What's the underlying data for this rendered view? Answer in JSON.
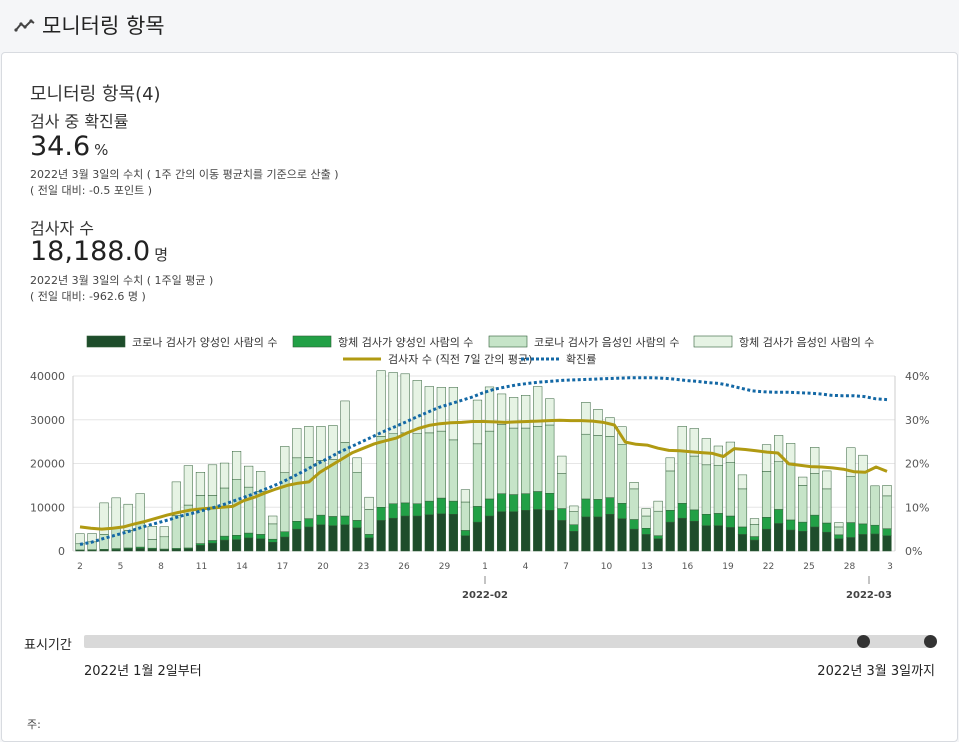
{
  "header": {
    "title": "모니터링 항목",
    "icon": "line-chart-icon"
  },
  "section": {
    "title": "모니터링 항목(4)"
  },
  "metric1": {
    "label": "검사 중 확진률",
    "value": "34.6",
    "unit": "%",
    "note1": "2022년 3월 3일의 수치 ( 1주 간의 이동 평균치를 기준으로 산출 )",
    "note2": "( 전일 대비: -0.5 포인트 )"
  },
  "metric2": {
    "label": "검사자 수",
    "value": "18,188.0",
    "unit": "명",
    "note1": "2022년 3월 3일의 수치 ( 1주일 평균 )",
    "note2": "( 전일 대비: -962.6 명 )"
  },
  "range": {
    "label": "표시기간",
    "start": "2022년 1월 2일부터",
    "end": "2022년 3월 3일까지"
  },
  "footer": {
    "note_label": "주:"
  },
  "colors": {
    "pcr_pos": "#1e4d2b",
    "ag_pos": "#22a046",
    "pcr_neg": "#c6e4c8",
    "ag_neg": "#e6f3e4",
    "avg_line": "#b09a12",
    "rate_line": "#1368a5"
  },
  "chart_data": {
    "type": "bar",
    "stacked": true,
    "x_tick_labels": [
      "2",
      "5",
      "8",
      "11",
      "14",
      "17",
      "20",
      "23",
      "26",
      "29",
      "1",
      "4",
      "7",
      "10",
      "13",
      "16",
      "19",
      "22",
      "25",
      "28",
      "3"
    ],
    "month_labels": [
      "2022-02",
      "2022-03"
    ],
    "ylim_left": [
      0,
      40000
    ],
    "yticks_left": [
      "0",
      "10000",
      "20000",
      "30000",
      "40000"
    ],
    "ylim_right": [
      0,
      40
    ],
    "yticks_right": [
      "0%",
      "10%",
      "20%",
      "30%",
      "40%"
    ],
    "grid": true,
    "legend_position": "top",
    "series": [
      {
        "name": "코로나 검사가 양성인 사람의 수",
        "kind": "bar",
        "values": [
          150,
          200,
          250,
          350,
          500,
          600,
          450,
          300,
          400,
          500,
          1300,
          1800,
          2500,
          2600,
          3000,
          2800,
          2000,
          3200,
          5000,
          5500,
          6000,
          5800,
          6000,
          5300,
          3000,
          7000,
          7500,
          8000,
          8000,
          8300,
          8500,
          8400,
          3500,
          6600,
          8000,
          9000,
          9000,
          9300,
          9500,
          9300,
          7000,
          4500,
          7800,
          7800,
          8400,
          7400,
          5000,
          3800,
          2800,
          6600,
          7500,
          6800,
          5800,
          5800,
          5400,
          3800,
          2500,
          5000,
          6300,
          4800,
          4500,
          5500,
          4300,
          2800,
          3100,
          3800,
          3900,
          3500
        ],
        "colors": "pcr_pos"
      },
      {
        "name": "항체 검사가 양성인 사람의 수",
        "kind": "bar",
        "values": [
          100,
          100,
          150,
          200,
          200,
          300,
          200,
          150,
          200,
          200,
          400,
          600,
          900,
          1000,
          1100,
          1000,
          700,
          1200,
          1800,
          1900,
          2200,
          2100,
          2000,
          1700,
          800,
          3000,
          3300,
          3000,
          2800,
          3100,
          3600,
          3000,
          1200,
          3600,
          3900,
          4100,
          3900,
          3800,
          4100,
          3900,
          2700,
          1500,
          4100,
          4000,
          3800,
          3500,
          2200,
          1400,
          700,
          2700,
          3400,
          2600,
          2600,
          2800,
          2600,
          1700,
          800,
          2700,
          3200,
          2300,
          2100,
          2700,
          2100,
          900,
          3400,
          2400,
          2000,
          1600
        ],
        "colors": "ag_pos"
      },
      {
        "name": "코로나 검사가 음성인 사람의 수",
        "kind": "bar",
        "values": [
          1400,
          1800,
          3400,
          4800,
          4000,
          5500,
          2000,
          2800,
          7500,
          9800,
          11000,
          10300,
          11000,
          12800,
          10500,
          9800,
          3500,
          13500,
          14500,
          14000,
          12500,
          13000,
          16800,
          11000,
          5700,
          16200,
          16000,
          16000,
          16000,
          15600,
          15300,
          14000,
          6500,
          14300,
          15500,
          15800,
          15200,
          15000,
          14900,
          15600,
          8000,
          3000,
          14800,
          14600,
          14000,
          13500,
          7000,
          2800,
          5600,
          9000,
          12000,
          12300,
          11300,
          11000,
          12200,
          8700,
          2800,
          10500,
          10900,
          13000,
          8400,
          9500,
          7800,
          1800,
          10500,
          11700,
          9000,
          7500
        ],
        "colors": "pcr_neg"
      },
      {
        "name": "항체 검사가 음성인 사람의 수",
        "kind": "bar",
        "values": [
          2300,
          1900,
          7200,
          6800,
          6000,
          6700,
          3000,
          2300,
          7700,
          9000,
          5300,
          7000,
          5700,
          6400,
          4800,
          4600,
          1800,
          6000,
          6700,
          7100,
          7800,
          7800,
          9500,
          3300,
          2800,
          15000,
          14000,
          13500,
          12200,
          10600,
          10000,
          12000,
          2800,
          10000,
          10100,
          7000,
          7000,
          7500,
          9100,
          6000,
          4000,
          1300,
          7300,
          6000,
          4300,
          4000,
          1500,
          1700,
          2300,
          3000,
          5600,
          6300,
          6000,
          4400,
          4700,
          3200,
          1300,
          6100,
          6000,
          4500,
          1900,
          6000,
          4100,
          1000,
          6600,
          4000,
          0,
          2400
        ],
        "colors": "ag_neg"
      },
      {
        "name": "검사자 수 (직전 7일 간의 평균)",
        "kind": "line",
        "axis": "left",
        "values": [
          5500,
          5200,
          5000,
          5200,
          5500,
          6200,
          6800,
          7500,
          8200,
          8800,
          9300,
          9600,
          9800,
          10000,
          10200,
          11500,
          12300,
          13300,
          14200,
          15000,
          15500,
          15800,
          18000,
          19500,
          21000,
          22500,
          23500,
          24500,
          25200,
          25800,
          27000,
          28000,
          28700,
          29100,
          29300,
          29400,
          29600,
          29600,
          29500,
          29400,
          29500,
          29600,
          29700,
          29800,
          29900,
          29800,
          29800,
          29700,
          29400,
          28800,
          24900,
          24400,
          24200,
          23500,
          23000,
          22900,
          22700,
          22500,
          22300,
          21600,
          23400,
          23200,
          22900,
          22600,
          22400,
          19900,
          19600,
          19300,
          19200,
          19000,
          18700,
          18100,
          18000,
          19200,
          18188
        ]
      },
      {
        "name": "확진률",
        "kind": "dotted-line",
        "axis": "right",
        "values": [
          1.5,
          2,
          2.8,
          3.5,
          4.2,
          5,
          5.8,
          6.5,
          7.2,
          8,
          8.6,
          9.3,
          10,
          10.8,
          11.7,
          12.6,
          13.6,
          14.6,
          15.7,
          17,
          18.3,
          19.7,
          21,
          22.4,
          23.6,
          24.8,
          26,
          27.2,
          28.3,
          29.4,
          30.6,
          31.7,
          32.8,
          33.6,
          34.4,
          35.2,
          36.2,
          37,
          37.5,
          38,
          38.3,
          38.6,
          38.8,
          39,
          39.1,
          39.2,
          39.3,
          39.4,
          39.5,
          39.6,
          39.6,
          39.6,
          39.5,
          39.3,
          39,
          38.8,
          38.5,
          38.3,
          37.8,
          37.2,
          36.6,
          36.4,
          36.3,
          36.3,
          36.2,
          36.1,
          35.9,
          35.6,
          35.5,
          35.5,
          35.3,
          34.8,
          34.6
        ]
      }
    ]
  }
}
